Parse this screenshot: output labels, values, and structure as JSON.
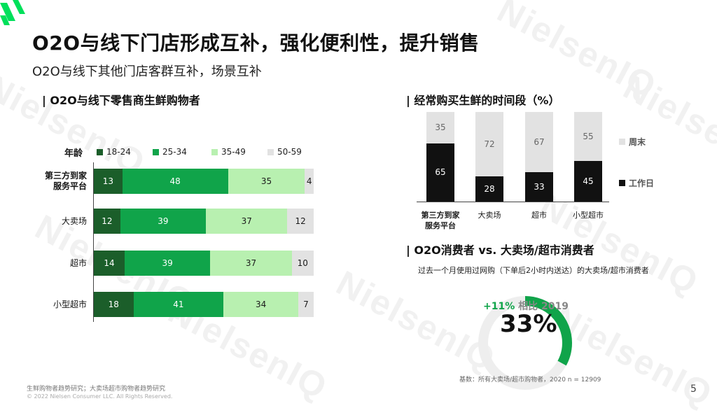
{
  "brand": {
    "colors": {
      "dark_green": "#1b5e2a",
      "green": "#10a44a",
      "light_green": "#b8f0b0",
      "gray": "#e2e2e2",
      "black": "#111111",
      "accent": "#00c853"
    }
  },
  "watermark": "NielsenIQ",
  "title": "O2O与线下门店形成互补，强化便利性，提升销售",
  "subtitle": "O2O与线下其他门店客群互补，场景互补",
  "left_chart": {
    "section_title": "| O2O与线下零售商生鲜购物者",
    "legend_title": "年龄",
    "chart_data": {
      "type": "bar",
      "orientation": "horizontal-stacked",
      "categories": [
        "第三方到家服务平台",
        "大卖场",
        "超市",
        "小型超市"
      ],
      "category_lines": [
        [
          "第三方到家",
          "服务平台"
        ],
        [
          "大卖场"
        ],
        [
          "超市"
        ],
        [
          "小型超市"
        ]
      ],
      "series": [
        {
          "name": "18-24",
          "values": [
            13,
            12,
            14,
            18
          ]
        },
        {
          "name": "25-34",
          "values": [
            48,
            39,
            39,
            41
          ]
        },
        {
          "name": "35-49",
          "values": [
            35,
            37,
            37,
            34
          ]
        },
        {
          "name": "50-59",
          "values": [
            4,
            12,
            10,
            7
          ]
        }
      ],
      "unit": "%"
    }
  },
  "right_chart": {
    "section_title": "| 经常购买生鲜的时间段（%）",
    "chart_data": {
      "type": "bar",
      "orientation": "vertical-stacked",
      "categories": [
        "第三方到家服务平台",
        "大卖场",
        "超市",
        "小型超市"
      ],
      "category_lines": [
        [
          "第三方到家",
          "服务平台"
        ],
        [
          "大卖场"
        ],
        [
          "超市"
        ],
        [
          "小型超市"
        ]
      ],
      "series": [
        {
          "name": "工作日",
          "values": [
            65,
            28,
            33,
            45
          ]
        },
        {
          "name": "周末",
          "values": [
            35,
            72,
            67,
            55
          ]
        }
      ],
      "legend": [
        "周末",
        "工作日"
      ],
      "unit": "%"
    }
  },
  "consumer": {
    "section_title": "| O2O消费者 vs. 大卖场/超市消费者",
    "description": "过去一个月使用过网购（下单后2小时内送达）的大卖场/超市消费者",
    "growth": "+11%",
    "growth_label": "相比 2019",
    "big_value": "33%",
    "donut_fraction": 0.33,
    "base_note": "基数：所有大卖场/超市购物者，2020 n = 12909"
  },
  "footer": {
    "source": "生鲜购物者趋势研究；大卖场超市购物者趋势研究",
    "copyright": "© 2022 Nielsen Consumer LLC. All Rights Reserved.",
    "page_number": "5"
  }
}
